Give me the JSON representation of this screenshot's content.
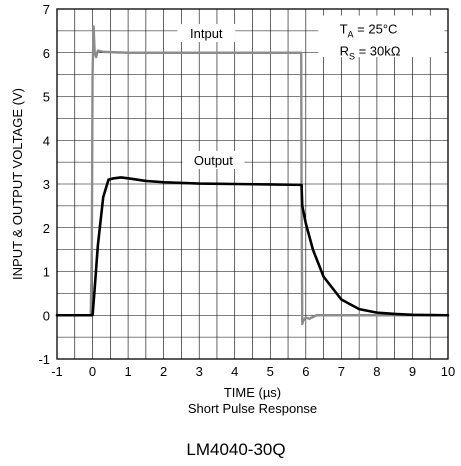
{
  "chart_data": {
    "type": "line",
    "xlabel": "TIME (µs)",
    "ylabel": "INPUT & OUTPUT VOLTAGE (V)",
    "subtitle": "Short Pulse Response",
    "caption": "LM4040-30Q",
    "xlim": [
      -1,
      10
    ],
    "ylim": [
      -1,
      7
    ],
    "x_ticks": [
      -1,
      0,
      1,
      2,
      3,
      4,
      5,
      6,
      7,
      8,
      9,
      10
    ],
    "y_ticks": [
      -1,
      0,
      1,
      2,
      3,
      4,
      5,
      6,
      7
    ],
    "grid": true,
    "conditions": {
      "ta": {
        "symbol": "T",
        "sub": "A",
        "value": " = 25°C"
      },
      "rs": {
        "symbol": "R",
        "sub": "S",
        "value": " = 30kΩ"
      }
    },
    "series": [
      {
        "name": "Intput",
        "color": "#8c8c8c",
        "x": [
          -1.0,
          -0.05,
          -0.02,
          0.0,
          0.03,
          0.06,
          0.1,
          0.15,
          0.3,
          1.0,
          3.0,
          5.87,
          5.88,
          5.9,
          5.93,
          6.0,
          6.1,
          6.3,
          8.0,
          10.0
        ],
        "y": [
          0.0,
          0.0,
          1.5,
          5.5,
          6.6,
          6.0,
          5.9,
          6.05,
          6.02,
          6.0,
          6.0,
          6.0,
          3.0,
          -0.2,
          -0.12,
          -0.05,
          -0.08,
          0.0,
          0.0,
          0.0
        ]
      },
      {
        "name": "Output",
        "color": "#000000",
        "x": [
          -1.0,
          0.0,
          0.05,
          0.15,
          0.3,
          0.45,
          0.6,
          0.8,
          1.0,
          1.5,
          2.0,
          3.0,
          4.0,
          5.0,
          5.88,
          5.9,
          6.0,
          6.2,
          6.5,
          7.0,
          7.5,
          8.0,
          8.5,
          9.0,
          10.0
        ],
        "y": [
          0.0,
          0.0,
          0.5,
          1.6,
          2.7,
          3.1,
          3.13,
          3.15,
          3.13,
          3.07,
          3.04,
          3.01,
          3.0,
          2.99,
          2.98,
          2.5,
          2.1,
          1.5,
          0.88,
          0.36,
          0.14,
          0.06,
          0.03,
          0.01,
          0.0
        ]
      }
    ]
  }
}
